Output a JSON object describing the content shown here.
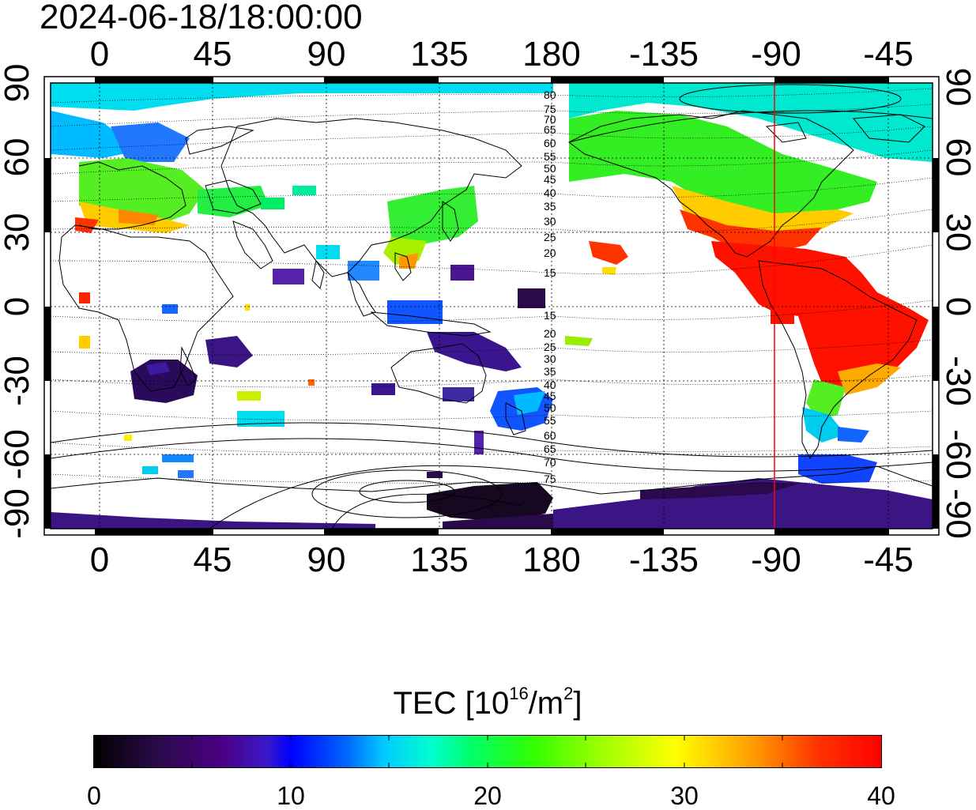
{
  "timestamp": "2024-06-18/18:00:00",
  "map": {
    "lon_ticks": [
      "0",
      "45",
      "90",
      "135",
      "180",
      "-135",
      "-90",
      "-45"
    ],
    "lat_ticks": [
      "90",
      "60",
      "30",
      "0",
      "-30",
      "-60",
      "-90"
    ],
    "contour_labels_north": [
      "80",
      "75",
      "70",
      "65",
      "60",
      "55",
      "50",
      "45",
      "40",
      "35",
      "30",
      "25",
      "20",
      "15"
    ],
    "contour_labels_south": [
      "15",
      "20",
      "25",
      "30",
      "35",
      "40",
      "45",
      "50",
      "55",
      "60",
      "65",
      "70",
      "75"
    ],
    "marker_longitude": -90,
    "colors": {
      "marker": "#ff0000",
      "grid": "#000000",
      "frame": "#000000"
    }
  },
  "colorbar": {
    "title_prefix": "TEC  [10",
    "title_sup1": "16",
    "title_mid": "/m",
    "title_sup2": "2",
    "title_suffix": "]",
    "ticks": [
      "0",
      "10",
      "20",
      "30",
      "40"
    ],
    "min": 0,
    "max": 40
  }
}
